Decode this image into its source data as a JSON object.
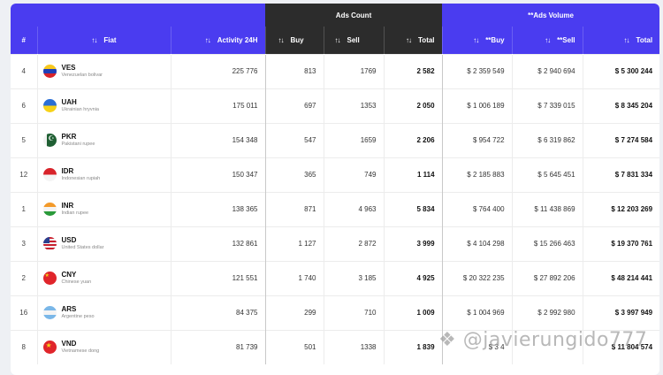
{
  "groups": {
    "ads_count": "Ads Count",
    "ads_volume": "**Ads Volume"
  },
  "columns": {
    "rank": "#",
    "fiat": "Fiat",
    "activity": "Activity 24H",
    "count_buy": "Buy",
    "count_sell": "Sell",
    "count_total": "Total",
    "vol_buy": "**Buy",
    "vol_sell": "**Sell",
    "vol_total": "Total"
  },
  "icons": {
    "sort": "sort-icon"
  },
  "rows": [
    {
      "rank": "4",
      "code": "VES",
      "name": "Venezuelan bolivar",
      "flag": "venezuela-flag-icon",
      "activity": "225 776",
      "buy": "813",
      "sell": "1769",
      "total": "2 582",
      "vbuy": "$ 2 359 549",
      "vsell": "$ 2 940 694",
      "vtotal": "$ 5 300 244"
    },
    {
      "rank": "6",
      "code": "UAH",
      "name": "Ukrainian hryvnia",
      "flag": "ukraine-flag-icon",
      "activity": "175 011",
      "buy": "697",
      "sell": "1353",
      "total": "2 050",
      "vbuy": "$ 1 006 189",
      "vsell": "$ 7 339 015",
      "vtotal": "$ 8 345 204"
    },
    {
      "rank": "5",
      "code": "PKR",
      "name": "Pakistani rupee",
      "flag": "pakistan-flag-icon",
      "activity": "154 348",
      "buy": "547",
      "sell": "1659",
      "total": "2 206",
      "vbuy": "$ 954 722",
      "vsell": "$ 6 319 862",
      "vtotal": "$ 7 274 584"
    },
    {
      "rank": "12",
      "code": "IDR",
      "name": "Indonesian rupiah",
      "flag": "indonesia-flag-icon",
      "activity": "150 347",
      "buy": "365",
      "sell": "749",
      "total": "1 114",
      "vbuy": "$ 2 185 883",
      "vsell": "$ 5 645 451",
      "vtotal": "$ 7 831 334"
    },
    {
      "rank": "1",
      "code": "INR",
      "name": "Indian rupee",
      "flag": "india-flag-icon",
      "activity": "138 365",
      "buy": "871",
      "sell": "4 963",
      "total": "5 834",
      "vbuy": "$ 764 400",
      "vsell": "$ 11 438 869",
      "vtotal": "$ 12 203 269"
    },
    {
      "rank": "3",
      "code": "USD",
      "name": "United States dollar",
      "flag": "usa-flag-icon",
      "activity": "132 861",
      "buy": "1 127",
      "sell": "2 872",
      "total": "3 999",
      "vbuy": "$ 4 104 298",
      "vsell": "$ 15 266 463",
      "vtotal": "$ 19 370 761"
    },
    {
      "rank": "2",
      "code": "CNY",
      "name": "Chinese yuan",
      "flag": "china-flag-icon",
      "activity": "121 551",
      "buy": "1 740",
      "sell": "3 185",
      "total": "4 925",
      "vbuy": "$ 20 322 235",
      "vsell": "$ 27 892 206",
      "vtotal": "$ 48 214 441"
    },
    {
      "rank": "16",
      "code": "ARS",
      "name": "Argentine peso",
      "flag": "argentina-flag-icon",
      "activity": "84 375",
      "buy": "299",
      "sell": "710",
      "total": "1 009",
      "vbuy": "$ 1 004 969",
      "vsell": "$ 2 992 980",
      "vtotal": "$ 3 997 949"
    },
    {
      "rank": "8",
      "code": "VND",
      "name": "Vietnamese dong",
      "flag": "vietnam-flag-icon",
      "activity": "81 739",
      "buy": "501",
      "sell": "1338",
      "total": "1 839",
      "vbuy": "$ 3 4",
      "vsell": "",
      "vtotal": "$ 11 804 574"
    }
  ],
  "watermark": "@javierungido777"
}
